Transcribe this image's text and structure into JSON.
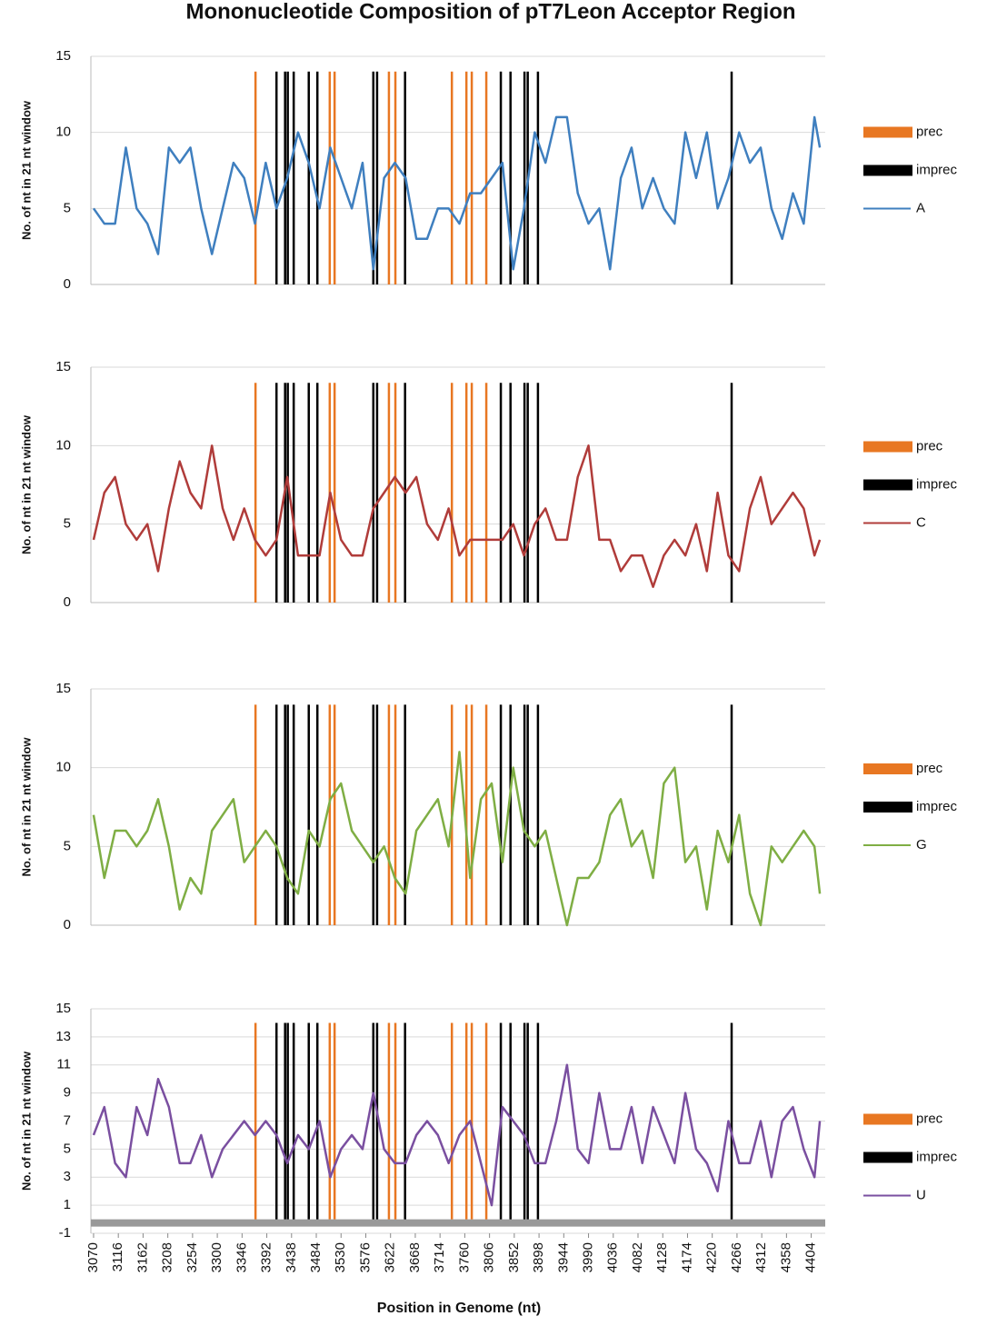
{
  "chart_data": [
    {
      "type": "line",
      "title": "Mononucleotide Composition of pT7Leon Acceptor Region",
      "y_label": "No. of nt in 21 nt window",
      "xlim": [
        3065,
        4430
      ],
      "ylim": [
        0,
        15
      ],
      "yticks": [
        0,
        5,
        10,
        15
      ],
      "grid": true,
      "x": [
        3070,
        3090,
        3110,
        3130,
        3150,
        3170,
        3190,
        3210,
        3230,
        3250,
        3270,
        3290,
        3310,
        3330,
        3350,
        3370,
        3390,
        3410,
        3430,
        3450,
        3470,
        3490,
        3510,
        3530,
        3550,
        3570,
        3590,
        3610,
        3630,
        3650,
        3670,
        3690,
        3710,
        3730,
        3750,
        3770,
        3790,
        3810,
        3830,
        3850,
        3870,
        3890,
        3910,
        3930,
        3950,
        3970,
        3990,
        4010,
        4030,
        4050,
        4070,
        4090,
        4110,
        4130,
        4150,
        4170,
        4190,
        4210,
        4230,
        4250,
        4270,
        4290,
        4310,
        4330,
        4350,
        4370,
        4390,
        4410,
        4420
      ],
      "series": [
        {
          "name": "prec",
          "color": "#e87722",
          "kind": "marker",
          "x": [
            3371,
            3509,
            3518,
            3619,
            3631,
            3736,
            3763,
            3773,
            3800
          ],
          "values": [
            14,
            14,
            14,
            14,
            14,
            14,
            14,
            14,
            14
          ]
        },
        {
          "name": "imprec",
          "color": "#000000",
          "kind": "marker",
          "x": [
            3410,
            3426,
            3431,
            3442,
            3470,
            3486,
            3590,
            3597,
            3649,
            3827,
            3845,
            3871,
            3877,
            3896,
            4256
          ],
          "values": [
            14,
            14,
            14,
            14,
            14,
            14,
            14,
            14,
            14,
            14,
            14,
            14,
            14,
            14,
            14
          ]
        },
        {
          "name": "A",
          "color": "#3f7fbf",
          "values": [
            5,
            4,
            4,
            9,
            5,
            4,
            2,
            9,
            8,
            9,
            5,
            2,
            5,
            8,
            7,
            4,
            8,
            5,
            7,
            10,
            8,
            5,
            9,
            7,
            5,
            8,
            1,
            7,
            8,
            7,
            3,
            3,
            5,
            5,
            4,
            6,
            6,
            7,
            8,
            1,
            5,
            10,
            8,
            11,
            11,
            6,
            4,
            5,
            1,
            7,
            9,
            5,
            7,
            5,
            4,
            10,
            7,
            10,
            5,
            7,
            10,
            8,
            9,
            5,
            3,
            6,
            4,
            11,
            9
          ]
        }
      ]
    },
    {
      "type": "line",
      "y_label": "No. of nt in 21 nt window",
      "xlim": [
        3065,
        4430
      ],
      "ylim": [
        0,
        15
      ],
      "yticks": [
        0,
        5,
        10,
        15
      ],
      "grid": true,
      "x": [
        3070,
        3090,
        3110,
        3130,
        3150,
        3170,
        3190,
        3210,
        3230,
        3250,
        3270,
        3290,
        3310,
        3330,
        3350,
        3370,
        3390,
        3410,
        3430,
        3450,
        3470,
        3490,
        3510,
        3530,
        3550,
        3570,
        3590,
        3610,
        3630,
        3650,
        3670,
        3690,
        3710,
        3730,
        3750,
        3770,
        3790,
        3810,
        3830,
        3850,
        3870,
        3890,
        3910,
        3930,
        3950,
        3970,
        3990,
        4010,
        4030,
        4050,
        4070,
        4090,
        4110,
        4130,
        4150,
        4170,
        4190,
        4210,
        4230,
        4250,
        4270,
        4290,
        4310,
        4330,
        4350,
        4370,
        4390,
        4410,
        4420
      ],
      "series": [
        {
          "name": "prec",
          "color": "#e87722",
          "kind": "marker",
          "x": [
            3371,
            3509,
            3518,
            3619,
            3631,
            3736,
            3763,
            3773,
            3800
          ],
          "values": [
            14,
            14,
            14,
            14,
            14,
            14,
            14,
            14,
            14
          ]
        },
        {
          "name": "imprec",
          "color": "#000000",
          "kind": "marker",
          "x": [
            3410,
            3426,
            3431,
            3442,
            3470,
            3486,
            3590,
            3597,
            3649,
            3827,
            3845,
            3871,
            3877,
            3896,
            4256
          ],
          "values": [
            14,
            14,
            14,
            14,
            14,
            14,
            14,
            14,
            14,
            14,
            14,
            14,
            14,
            14,
            14
          ]
        },
        {
          "name": "C",
          "color": "#b03c3a",
          "values": [
            4,
            7,
            8,
            5,
            4,
            5,
            2,
            6,
            9,
            7,
            6,
            10,
            6,
            4,
            6,
            4,
            3,
            4,
            8,
            3,
            3,
            3,
            7,
            4,
            3,
            3,
            6,
            7,
            8,
            7,
            8,
            5,
            4,
            6,
            3,
            4,
            4,
            4,
            4,
            5,
            3,
            5,
            6,
            4,
            4,
            8,
            10,
            4,
            4,
            2,
            3,
            3,
            1,
            3,
            4,
            3,
            5,
            2,
            7,
            3,
            2,
            6,
            8,
            5,
            6,
            7,
            6,
            3,
            4
          ]
        }
      ]
    },
    {
      "type": "line",
      "y_label": "No. of nt in 21 nt window",
      "xlim": [
        3065,
        4430
      ],
      "ylim": [
        0,
        15
      ],
      "yticks": [
        0,
        5,
        10,
        15
      ],
      "grid": true,
      "x": [
        3070,
        3090,
        3110,
        3130,
        3150,
        3170,
        3190,
        3210,
        3230,
        3250,
        3270,
        3290,
        3310,
        3330,
        3350,
        3370,
        3390,
        3410,
        3430,
        3450,
        3470,
        3490,
        3510,
        3530,
        3550,
        3570,
        3590,
        3610,
        3630,
        3650,
        3670,
        3690,
        3710,
        3730,
        3750,
        3770,
        3790,
        3810,
        3830,
        3850,
        3870,
        3890,
        3910,
        3930,
        3950,
        3970,
        3990,
        4010,
        4030,
        4050,
        4070,
        4090,
        4110,
        4130,
        4150,
        4170,
        4190,
        4210,
        4230,
        4250,
        4270,
        4290,
        4310,
        4330,
        4350,
        4370,
        4390,
        4410,
        4420
      ],
      "series": [
        {
          "name": "prec",
          "color": "#e87722",
          "kind": "marker",
          "x": [
            3371,
            3509,
            3518,
            3619,
            3631,
            3736,
            3763,
            3773,
            3800
          ],
          "values": [
            14,
            14,
            14,
            14,
            14,
            14,
            14,
            14,
            14
          ]
        },
        {
          "name": "imprec",
          "color": "#000000",
          "kind": "marker",
          "x": [
            3410,
            3426,
            3431,
            3442,
            3470,
            3486,
            3590,
            3597,
            3649,
            3827,
            3845,
            3871,
            3877,
            3896,
            4256
          ],
          "values": [
            14,
            14,
            14,
            14,
            14,
            14,
            14,
            14,
            14,
            14,
            14,
            14,
            14,
            14,
            14
          ]
        },
        {
          "name": "G",
          "color": "#7fae44",
          "values": [
            7,
            3,
            6,
            6,
            5,
            6,
            8,
            5,
            1,
            3,
            2,
            6,
            7,
            8,
            4,
            5,
            6,
            5,
            3,
            2,
            6,
            5,
            8,
            9,
            6,
            5,
            4,
            5,
            3,
            2,
            6,
            7,
            8,
            5,
            11,
            3,
            8,
            9,
            4,
            10,
            6,
            5,
            6,
            3,
            0,
            3,
            3,
            4,
            7,
            8,
            5,
            6,
            3,
            9,
            10,
            4,
            5,
            1,
            6,
            4,
            7,
            2,
            0,
            5,
            4,
            5,
            6,
            5,
            2
          ]
        }
      ]
    },
    {
      "type": "line",
      "y_label": "No. of nt in 21 nt window",
      "x_label": "Position in Genome (nt)",
      "xlim": [
        3065,
        4430
      ],
      "ylim": [
        -1,
        15
      ],
      "yticks": [
        -1,
        1,
        3,
        5,
        7,
        9,
        11,
        13,
        15
      ],
      "grid": true,
      "xticks": [
        3070,
        3116,
        3162,
        3208,
        3254,
        3300,
        3346,
        3392,
        3438,
        3484,
        3530,
        3576,
        3622,
        3668,
        3714,
        3760,
        3806,
        3852,
        3898,
        3944,
        3990,
        4036,
        4082,
        4128,
        4174,
        4220,
        4266,
        4312,
        4358,
        4404
      ],
      "x": [
        3070,
        3090,
        3110,
        3130,
        3150,
        3170,
        3190,
        3210,
        3230,
        3250,
        3270,
        3290,
        3310,
        3330,
        3350,
        3370,
        3390,
        3410,
        3430,
        3450,
        3470,
        3490,
        3510,
        3530,
        3550,
        3570,
        3590,
        3610,
        3630,
        3650,
        3670,
        3690,
        3710,
        3730,
        3750,
        3770,
        3790,
        3810,
        3830,
        3850,
        3870,
        3890,
        3910,
        3930,
        3950,
        3970,
        3990,
        4010,
        4030,
        4050,
        4070,
        4090,
        4110,
        4130,
        4150,
        4170,
        4190,
        4210,
        4230,
        4250,
        4270,
        4290,
        4310,
        4330,
        4350,
        4370,
        4390,
        4410,
        4420
      ],
      "series": [
        {
          "name": "prec",
          "color": "#e87722",
          "kind": "marker",
          "x": [
            3371,
            3509,
            3518,
            3619,
            3631,
            3736,
            3763,
            3773,
            3800
          ],
          "values": [
            14,
            14,
            14,
            14,
            14,
            14,
            14,
            14,
            14
          ]
        },
        {
          "name": "imprec",
          "color": "#000000",
          "kind": "marker",
          "x": [
            3410,
            3426,
            3431,
            3442,
            3470,
            3486,
            3590,
            3597,
            3649,
            3827,
            3845,
            3871,
            3877,
            3896,
            4256
          ],
          "values": [
            14,
            14,
            14,
            14,
            14,
            14,
            14,
            14,
            14,
            14,
            14,
            14,
            14,
            14,
            14
          ]
        },
        {
          "name": "U",
          "color": "#7a4fa0",
          "values": [
            6,
            8,
            4,
            3,
            8,
            6,
            10,
            8,
            4,
            4,
            6,
            3,
            5,
            6,
            7,
            6,
            7,
            6,
            4,
            6,
            5,
            7,
            3,
            5,
            6,
            5,
            9,
            5,
            4,
            4,
            6,
            7,
            6,
            4,
            6,
            7,
            4,
            1,
            8,
            7,
            6,
            4,
            4,
            7,
            11,
            5,
            4,
            9,
            5,
            5,
            8,
            4,
            8,
            6,
            4,
            9,
            5,
            4,
            2,
            7,
            4,
            4,
            7,
            3,
            7,
            8,
            5,
            3,
            7
          ]
        }
      ]
    }
  ]
}
